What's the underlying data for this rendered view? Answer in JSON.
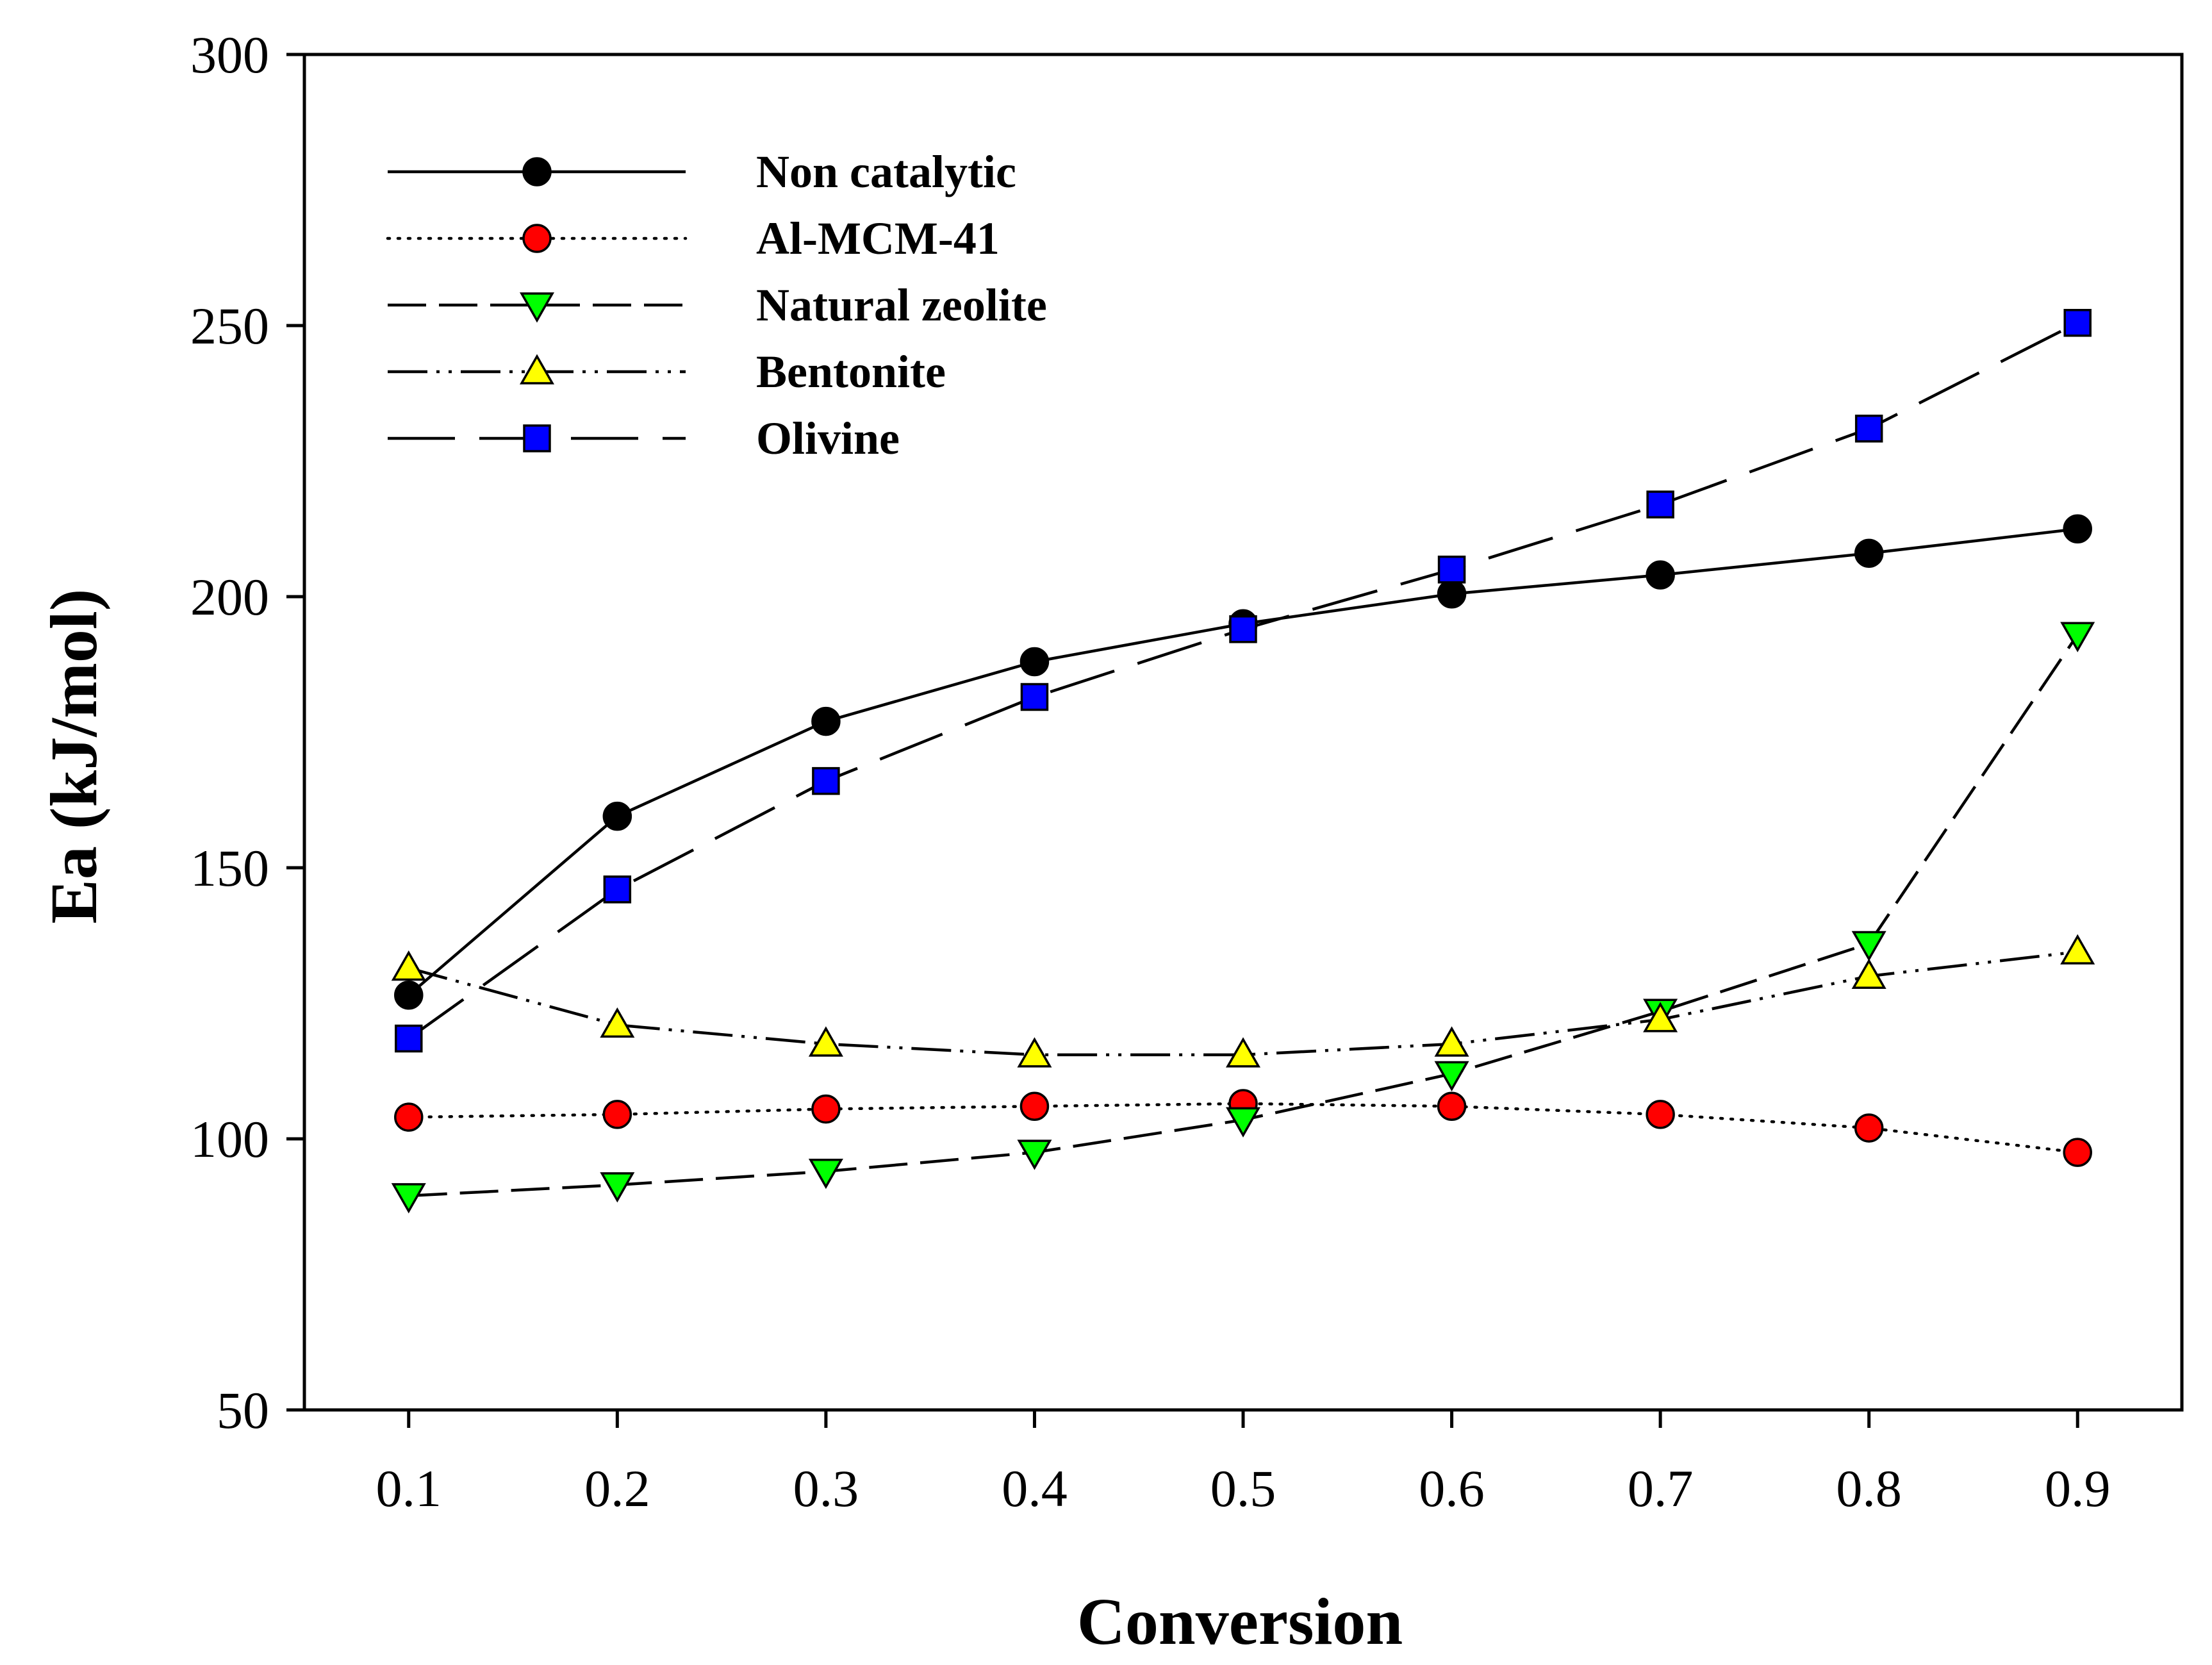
{
  "chart_data": {
    "type": "line",
    "title": "",
    "xlabel": "Conversion",
    "ylabel": "Ea (kJ/mol)",
    "x": [
      0.1,
      0.2,
      0.3,
      0.4,
      0.5,
      0.6,
      0.7,
      0.8,
      0.9
    ],
    "x_tick_labels": [
      "0.1",
      "0.2",
      "0.3",
      "0.4",
      "0.5",
      "0.6",
      "0.7",
      "0.8",
      "0.9"
    ],
    "xlim": [
      0.05,
      0.95
    ],
    "ylim": [
      50,
      300
    ],
    "y_ticks": [
      50,
      100,
      150,
      200,
      250,
      300
    ],
    "y_tick_labels": [
      "50",
      "100",
      "150",
      "200",
      "250",
      "300"
    ],
    "grid": false,
    "legend_position": "top-left",
    "series": [
      {
        "name": "Non catalytic",
        "marker": "circle",
        "line_style": "solid",
        "marker_color": "#000000",
        "values": [
          126.5,
          159.5,
          177.0,
          188.0,
          195.0,
          200.5,
          204.0,
          208.0,
          212.5
        ]
      },
      {
        "name": "Al-MCM-41",
        "marker": "circle",
        "line_style": "dotted",
        "marker_color": "#ff0000",
        "values": [
          104.0,
          104.5,
          105.5,
          106.0,
          106.5,
          106.0,
          104.5,
          102.0,
          97.5
        ]
      },
      {
        "name": "Natural zeolite",
        "marker": "triangle-down",
        "line_style": "dashed",
        "marker_color": "#00ff00",
        "values": [
          89.5,
          91.5,
          94.0,
          97.5,
          103.5,
          112.0,
          123.5,
          136.0,
          193.0
        ]
      },
      {
        "name": "Bentonite",
        "marker": "triangle-up",
        "line_style": "dash-dot-dot",
        "marker_color": "#ffff00",
        "values": [
          131.5,
          121.0,
          117.5,
          115.5,
          115.5,
          117.5,
          122.0,
          130.0,
          134.5
        ]
      },
      {
        "name": "Olivine",
        "marker": "square",
        "line_style": "long-dash",
        "marker_color": "#0000ff",
        "values": [
          118.5,
          146.0,
          166.0,
          181.5,
          194.0,
          205.0,
          217.0,
          231.0,
          250.5
        ]
      }
    ]
  }
}
